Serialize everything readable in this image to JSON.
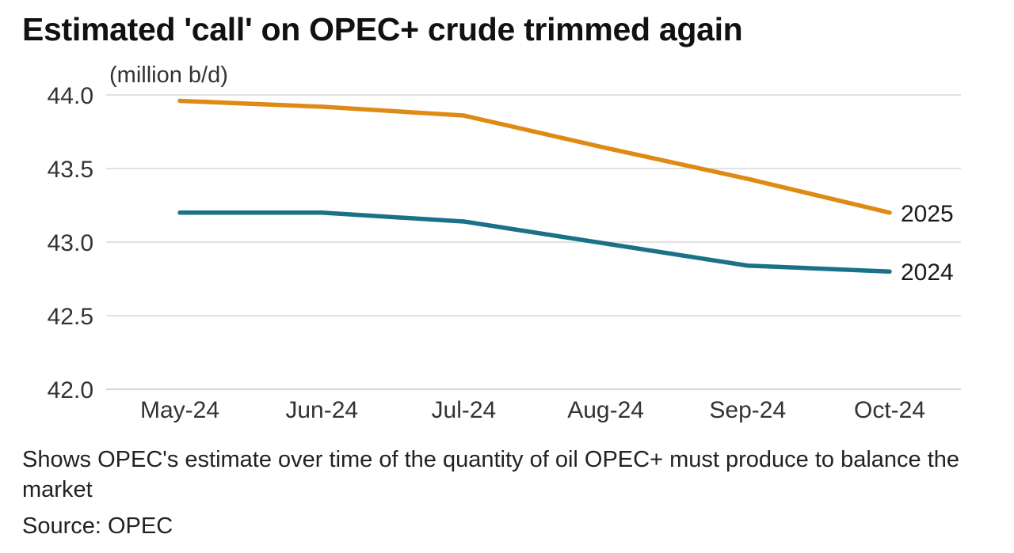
{
  "title": "Estimated 'call' on OPEC+ crude trimmed again",
  "unit_label": "(million b/d)",
  "caption": "Shows OPEC's estimate over time of the quantity of oil OPEC+ must produce to balance the market",
  "source": "Source: OPEC",
  "colors": {
    "series_2025": "#E08A16",
    "series_2024": "#1A7289",
    "grid": "#d9d9d9",
    "axis_text": "#333333"
  },
  "chart_data": {
    "type": "line",
    "title": "Estimated 'call' on OPEC+ crude trimmed again",
    "ylabel": "(million b/d)",
    "xlabel": "",
    "categories": [
      "May-24",
      "Jun-24",
      "Jul-24",
      "Aug-24",
      "Sep-24",
      "Oct-24"
    ],
    "yticks": [
      "44.0",
      "43.5",
      "43.0",
      "42.5",
      "42.0"
    ],
    "ylim": [
      42.0,
      44.0
    ],
    "grid": true,
    "series": [
      {
        "name": "2025",
        "color": "#E08A16",
        "values": [
          43.96,
          43.92,
          43.86,
          43.64,
          43.43,
          43.2
        ]
      },
      {
        "name": "2024",
        "color": "#1A7289",
        "values": [
          43.2,
          43.2,
          43.14,
          42.99,
          42.84,
          42.8
        ]
      }
    ]
  }
}
